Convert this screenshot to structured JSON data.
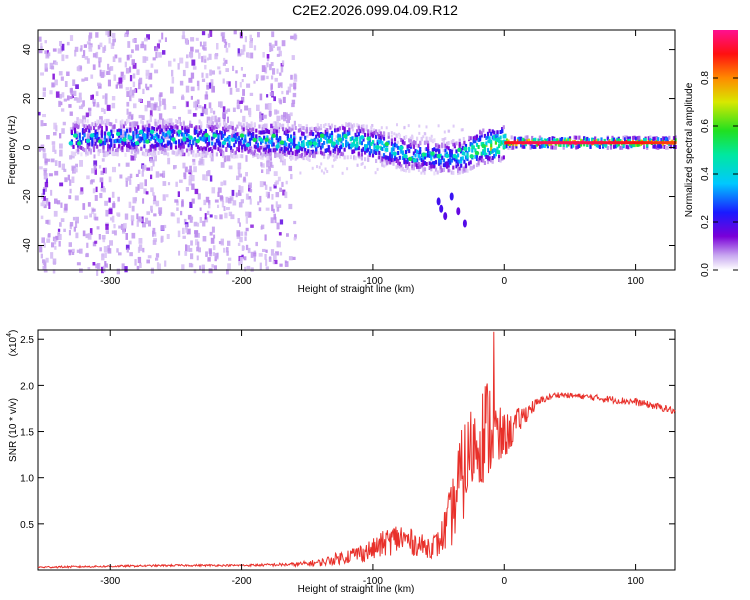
{
  "title": "C2E2.2026.099.04.09.R12",
  "colors": {
    "line": "#e8302a",
    "spectrogram_noise": "#b98cf0",
    "spectrogram_core": "#4b00d6",
    "spectrogram_mid": "#1ec8ff",
    "spectrogram_peak": "#ff1a1a"
  },
  "chart_data": [
    {
      "type": "heatmap",
      "name": "spectrogram",
      "xlabel": "Height of straight line (km)",
      "ylabel": "Frequency (Hz)",
      "xlim": [
        -355,
        130
      ],
      "ylim": [
        -50,
        48
      ],
      "xticks": [
        -300,
        -200,
        -100,
        0,
        100
      ],
      "yticks": [
        -40,
        -20,
        0,
        20,
        40
      ],
      "colorbar": {
        "label": "Normalized spectral amplitude",
        "range": [
          0,
          1
        ],
        "ticks": [
          "0.0",
          "0.2",
          "0.4",
          "0.6",
          "0.8"
        ],
        "colormap": "rainbow (white-violet-blue-cyan-green-yellow-red-magenta)"
      },
      "ridge": {
        "description": "Doppler frequency ridge vs height",
        "x": [
          -330,
          -300,
          -250,
          -200,
          -150,
          -120,
          -100,
          -80,
          -70,
          -60,
          -50,
          -40,
          -30,
          -20,
          -10,
          0,
          20,
          60,
          100,
          130
        ],
        "freq": [
          4,
          4,
          4,
          3,
          2,
          3,
          1,
          -2,
          -3,
          -3,
          -4,
          -4,
          -3,
          0,
          1,
          2,
          2,
          2,
          2,
          2
        ],
        "amplitude": [
          0.3,
          0.35,
          0.35,
          0.35,
          0.4,
          0.45,
          0.45,
          0.4,
          0.35,
          0.35,
          0.35,
          0.4,
          0.5,
          0.6,
          0.8,
          0.9,
          0.95,
          0.95,
          0.9,
          0.85
        ]
      },
      "noise_region": {
        "x_range": [
          -355,
          -160
        ],
        "freq_range": [
          -50,
          48
        ]
      },
      "secondary_trace": {
        "x": [
          -50,
          -48,
          -45,
          -40,
          -35,
          -30
        ],
        "freq": [
          -22,
          -25,
          -28,
          -20,
          -26,
          -31
        ]
      }
    },
    {
      "type": "line",
      "name": "snr",
      "xlabel": "Height of straight line (km)",
      "ylabel": "SNR (10 * v/v)",
      "scale_label": "(x10",
      "scale_exp": "4",
      "scale_close": ")",
      "xlim": [
        -355,
        130
      ],
      "ylim": [
        0,
        2.6
      ],
      "xticks": [
        -300,
        -200,
        -100,
        0,
        100
      ],
      "yticks": [
        0.5,
        1.0,
        1.5,
        2.0,
        2.5
      ],
      "ytick_labels": [
        "0.5",
        "1.0",
        "1.5",
        "2.0",
        "2.5"
      ],
      "x": [
        -355,
        -300,
        -250,
        -200,
        -160,
        -140,
        -120,
        -100,
        -90,
        -80,
        -70,
        -60,
        -50,
        -40,
        -35,
        -30,
        -25,
        -20,
        -15,
        -10,
        -5,
        0,
        5,
        10,
        20,
        30,
        40,
        60,
        80,
        100,
        120,
        130
      ],
      "y": [
        0.03,
        0.04,
        0.05,
        0.05,
        0.06,
        0.08,
        0.15,
        0.22,
        0.3,
        0.35,
        0.3,
        0.25,
        0.28,
        0.6,
        0.9,
        1.1,
        1.3,
        1.4,
        1.5,
        1.55,
        1.4,
        1.45,
        1.5,
        1.6,
        1.75,
        1.85,
        1.9,
        1.88,
        1.85,
        1.82,
        1.76,
        1.72
      ],
      "noise_amplitude": [
        0.01,
        0.01,
        0.01,
        0.01,
        0.02,
        0.04,
        0.08,
        0.12,
        0.15,
        0.18,
        0.14,
        0.12,
        0.15,
        0.35,
        0.5,
        0.55,
        0.5,
        0.45,
        0.6,
        0.55,
        0.4,
        0.25,
        0.2,
        0.15,
        0.08,
        0.04,
        0.03,
        0.03,
        0.04,
        0.04,
        0.04,
        0.04
      ],
      "peak": {
        "x": -8,
        "y": 2.58
      }
    }
  ]
}
